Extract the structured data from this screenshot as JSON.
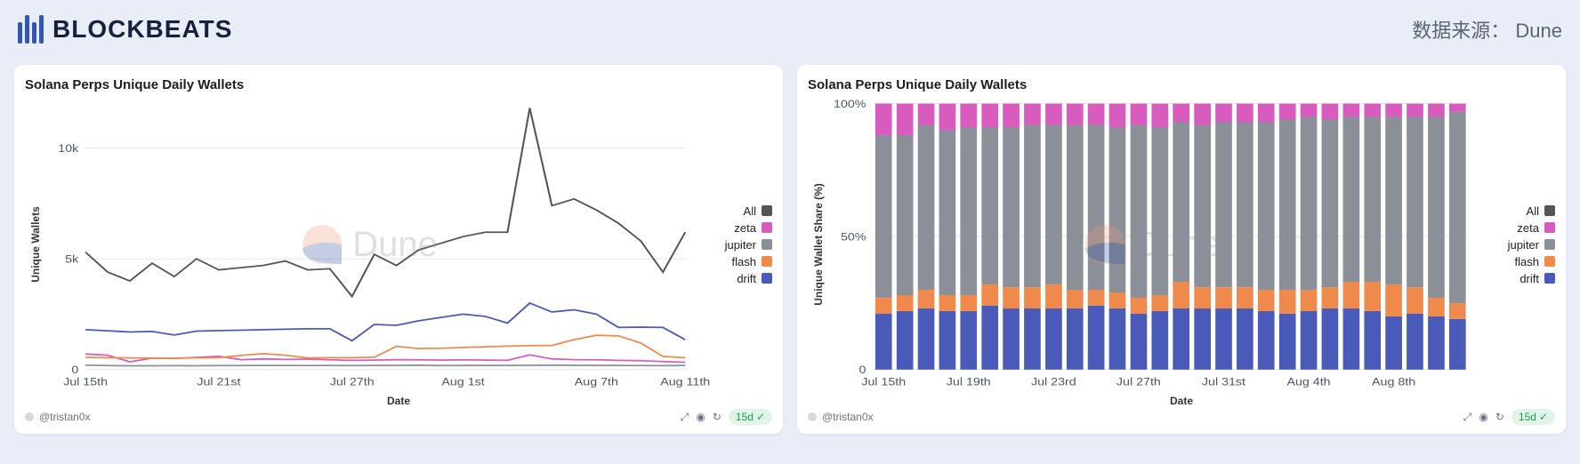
{
  "header": {
    "logo_text": "BLOCKBEATS",
    "source_label": "数据来源：",
    "source_name": "Dune"
  },
  "common": {
    "watermark_text": "Dune",
    "footer_user": "@tristan0x",
    "time_badge": "15d",
    "legend": [
      {
        "label": "All",
        "color": "#555555"
      },
      {
        "label": "zeta",
        "color": "#d85bbe"
      },
      {
        "label": "jupiter",
        "color": "#8b8f98"
      },
      {
        "label": "flash",
        "color": "#f08a4c"
      },
      {
        "label": "drift",
        "color": "#4a5ab8"
      }
    ]
  },
  "chart_left": {
    "type": "line",
    "title": "Solana Perps Unique Daily Wallets",
    "ylabel": "Unique Wallets",
    "xlabel": "Date",
    "ylim": [
      0,
      12000
    ],
    "yticks": [
      {
        "v": 0,
        "label": "0"
      },
      {
        "v": 5000,
        "label": "5k"
      },
      {
        "v": 10000,
        "label": "10k"
      }
    ],
    "xticks": [
      "Jul 15th",
      "Jul 21st",
      "Jul 27th",
      "Aug 1st",
      "Aug 7th",
      "Aug 11th"
    ],
    "xtick_positions": [
      0,
      6,
      12,
      17,
      23,
      27
    ],
    "n_points": 28,
    "grid_color": "#e5e7eb",
    "background_color": "#ffffff",
    "series": {
      "All": [
        5300,
        4400,
        4000,
        4800,
        4200,
        5000,
        4500,
        4600,
        4700,
        4900,
        4500,
        4550,
        3300,
        5200,
        4700,
        5400,
        5700,
        6000,
        6200,
        6200,
        11800,
        7400,
        7700,
        7200,
        6600,
        5800,
        4400,
        6200
      ],
      "zeta": [
        700,
        650,
        350,
        520,
        500,
        550,
        600,
        450,
        480,
        460,
        470,
        440,
        420,
        430,
        450,
        440,
        430,
        440,
        430,
        420,
        660,
        480,
        450,
        440,
        420,
        400,
        360,
        330
      ],
      "jupiter": [
        200,
        180,
        170,
        170,
        175,
        170,
        180,
        180,
        190,
        185,
        180,
        185,
        180,
        185,
        190,
        200,
        180,
        185,
        188,
        190,
        195,
        200,
        195,
        190,
        185,
        180,
        175,
        185
      ],
      "flash": [
        550,
        540,
        530,
        520,
        510,
        535,
        540,
        640,
        720,
        650,
        530,
        540,
        540,
        560,
        1050,
        950,
        960,
        1000,
        1030,
        1060,
        1080,
        1090,
        1350,
        1550,
        1520,
        1200,
        590,
        540
      ],
      "drift": [
        1800,
        1750,
        1700,
        1720,
        1560,
        1740,
        1760,
        1780,
        1800,
        1820,
        1840,
        1840,
        1300,
        2040,
        2000,
        2200,
        2350,
        2500,
        2400,
        2100,
        3000,
        2600,
        2700,
        2500,
        1900,
        1920,
        1900,
        1350
      ]
    },
    "line_width": 1.6
  },
  "chart_right": {
    "type": "stacked-bar",
    "title": "Solana Perps Unique Daily Wallets",
    "ylabel": "Unique Wallet Share (%)",
    "xlabel": "Date",
    "ylim": [
      0,
      100
    ],
    "yticks": [
      {
        "v": 0,
        "label": "0"
      },
      {
        "v": 50,
        "label": "50%"
      },
      {
        "v": 100,
        "label": "100%"
      }
    ],
    "xticks": [
      "Jul 15th",
      "Jul 19th",
      "Jul 23rd",
      "Jul 27th",
      "Jul 31st",
      "Aug 4th",
      "Aug 8th"
    ],
    "xtick_positions": [
      0,
      4,
      8,
      12,
      16,
      20,
      24
    ],
    "n_bars": 28,
    "bar_gap": 0.22,
    "grid_color": "#e5e7eb",
    "background_color": "#ffffff",
    "stack_order": [
      "drift",
      "flash",
      "jupiter",
      "zeta"
    ],
    "colors": {
      "drift": "#4a5ab8",
      "flash": "#f08a4c",
      "jupiter": "#8b8f98",
      "zeta": "#d85bbe"
    },
    "series": {
      "drift": [
        21,
        22,
        23,
        22,
        22,
        24,
        23,
        23,
        23,
        23,
        24,
        23,
        21,
        22,
        23,
        23,
        23,
        23,
        22,
        21,
        22,
        23,
        23,
        22,
        20,
        21,
        20,
        19
      ],
      "flash": [
        6,
        6,
        7,
        6,
        6,
        8,
        8,
        8,
        9,
        7,
        6,
        6,
        6,
        6,
        10,
        8,
        8,
        8,
        8,
        9,
        8,
        8,
        10,
        11,
        12,
        10,
        7,
        6
      ],
      "jupiter": [
        61,
        60,
        62,
        62,
        63,
        59,
        60,
        61,
        60,
        62,
        62,
        62,
        65,
        63,
        60,
        61,
        62,
        62,
        63,
        64,
        65,
        63,
        62,
        62,
        63,
        64,
        68,
        72
      ],
      "zeta": [
        12,
        12,
        8,
        10,
        9,
        9,
        9,
        8,
        8,
        8,
        8,
        9,
        8,
        9,
        7,
        8,
        7,
        7,
        7,
        6,
        5,
        6,
        5,
        5,
        5,
        5,
        5,
        3
      ]
    }
  }
}
